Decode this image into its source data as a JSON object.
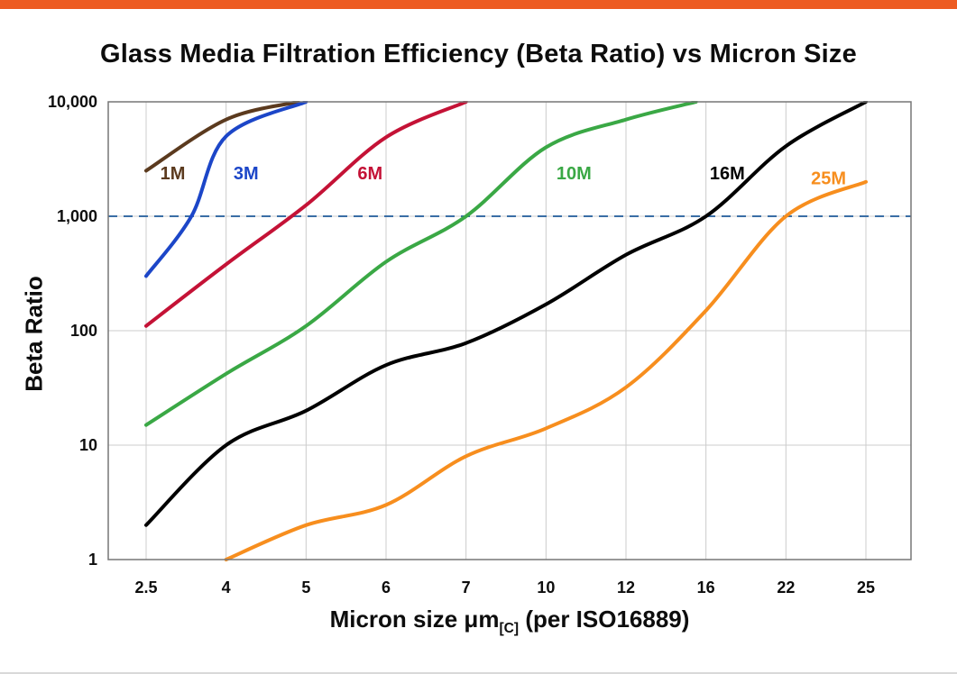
{
  "page": {
    "top_bar_color": "#ed5b21"
  },
  "chart_data": {
    "type": "line",
    "title": "Glass Media Filtration Efficiency (Beta Ratio) vs Micron Size",
    "ylabel": "Beta Ratio",
    "xlabel": {
      "pre": "Micron size μm",
      "sub": "[C]",
      "post": " (per ISO16889)"
    },
    "x_categories": [
      "2.5",
      "4",
      "5",
      "6",
      "7",
      "10",
      "12",
      "16",
      "22",
      "25"
    ],
    "y_ticks": [
      "1",
      "10",
      "100",
      "1,000",
      "10,000"
    ],
    "y_scale": "log",
    "ylim": [
      1,
      10000
    ],
    "grid": true,
    "legend_position": "inline-labels",
    "reference_line": {
      "y": 1000,
      "style": "dashed",
      "color": "#3a6ea5"
    },
    "grid_color": "#cccccc",
    "border_color": "#777777",
    "series": [
      {
        "name": "1M",
        "color": "#5b3a1e",
        "label_at": {
          "micron": 3.0,
          "beta": 2100
        },
        "points": [
          [
            2.5,
            2500
          ],
          [
            4,
            7000
          ],
          [
            4.9,
            10000
          ]
        ]
      },
      {
        "name": "3M",
        "color": "#1c46c8",
        "label_at": {
          "micron": 4.25,
          "beta": 2100
        },
        "points": [
          [
            2.5,
            300
          ],
          [
            3.35,
            1000
          ],
          [
            4,
            5000
          ],
          [
            5,
            10000
          ]
        ]
      },
      {
        "name": "6M",
        "color": "#c41236",
        "label_at": {
          "micron": 5.8,
          "beta": 2100
        },
        "points": [
          [
            2.5,
            110
          ],
          [
            4,
            380
          ],
          [
            5,
            1250
          ],
          [
            6,
            4900
          ],
          [
            7,
            10000
          ]
        ]
      },
      {
        "name": "10M",
        "color": "#3aa845",
        "label_at": {
          "micron": 10.7,
          "beta": 2100
        },
        "points": [
          [
            2.5,
            15
          ],
          [
            4,
            42
          ],
          [
            5,
            110
          ],
          [
            6,
            400
          ],
          [
            7,
            1000
          ],
          [
            10,
            4000
          ],
          [
            12,
            7000
          ],
          [
            15.5,
            10000
          ]
        ]
      },
      {
        "name": "16M",
        "color": "#000000",
        "label_at": {
          "micron": 17.6,
          "beta": 2100
        },
        "points": [
          [
            2.5,
            2
          ],
          [
            4,
            10
          ],
          [
            5,
            20
          ],
          [
            6,
            50
          ],
          [
            7,
            78
          ],
          [
            10,
            170
          ],
          [
            12,
            460
          ],
          [
            16,
            1000
          ],
          [
            22,
            4100
          ],
          [
            25,
            10000
          ]
        ]
      },
      {
        "name": "25M",
        "color": "#f78e1e",
        "label_at": {
          "micron": 23.6,
          "beta": 1900
        },
        "points": [
          [
            4,
            1
          ],
          [
            5,
            2
          ],
          [
            6,
            3
          ],
          [
            7,
            8
          ],
          [
            10,
            14
          ],
          [
            12,
            32
          ],
          [
            16,
            150
          ],
          [
            22,
            1000
          ],
          [
            25,
            2000
          ]
        ]
      }
    ]
  }
}
